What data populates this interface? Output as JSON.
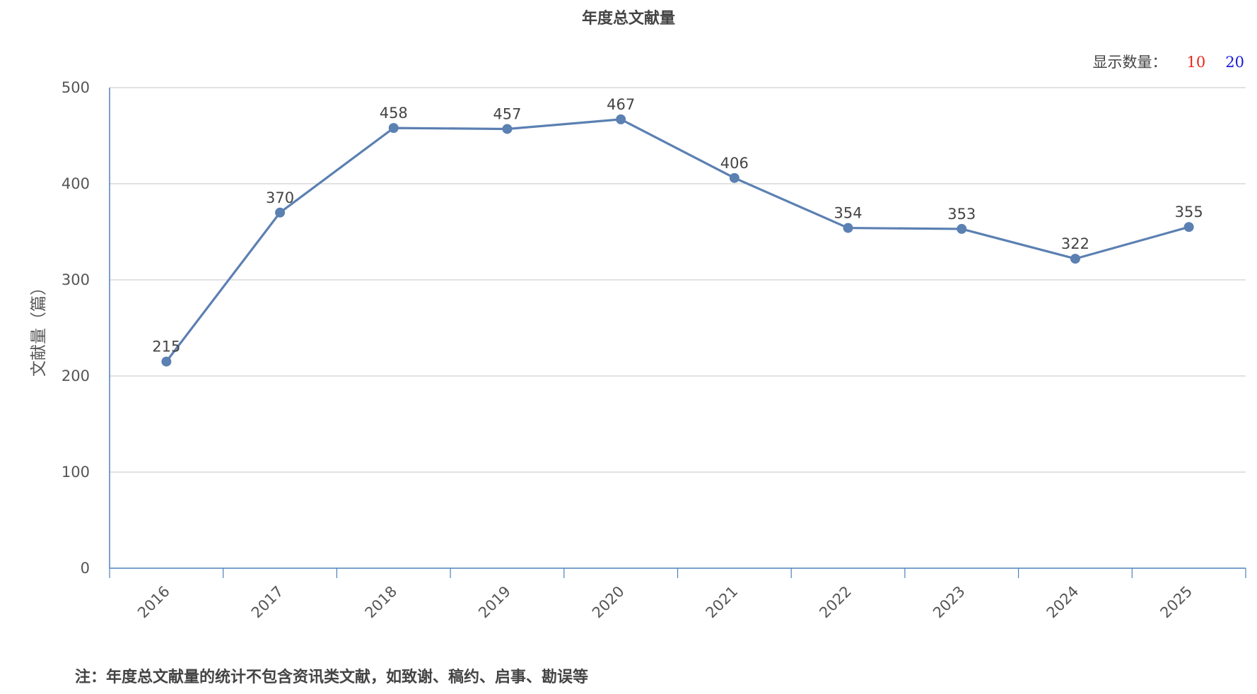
{
  "header": {
    "title": "年度总文献量"
  },
  "count_control": {
    "label": "显示数量：",
    "options": [
      "10",
      "20"
    ]
  },
  "note": "注：年度总文献量的统计不包含资讯类文献，如致谢、稿约、启事、勘误等",
  "colors": {
    "line": "#5b80b2",
    "axis": "#4f81bd",
    "grid": "#d0d0d0",
    "option_10": "#e8251c",
    "option_20": "#1a1ad9"
  },
  "chart_data": {
    "type": "line",
    "title": "年度总文献量",
    "xlabel": "",
    "ylabel": "文献量（篇）",
    "categories": [
      "2016",
      "2017",
      "2018",
      "2019",
      "2020",
      "2021",
      "2022",
      "2023",
      "2024",
      "2025"
    ],
    "series": [
      {
        "values": [
          215,
          370,
          458,
          457,
          467,
          406,
          354,
          353,
          322,
          355
        ]
      }
    ],
    "ylim": [
      0,
      500
    ],
    "yticks": [
      0,
      100,
      200,
      300,
      400,
      500
    ],
    "grid": true,
    "data_labels": true
  }
}
